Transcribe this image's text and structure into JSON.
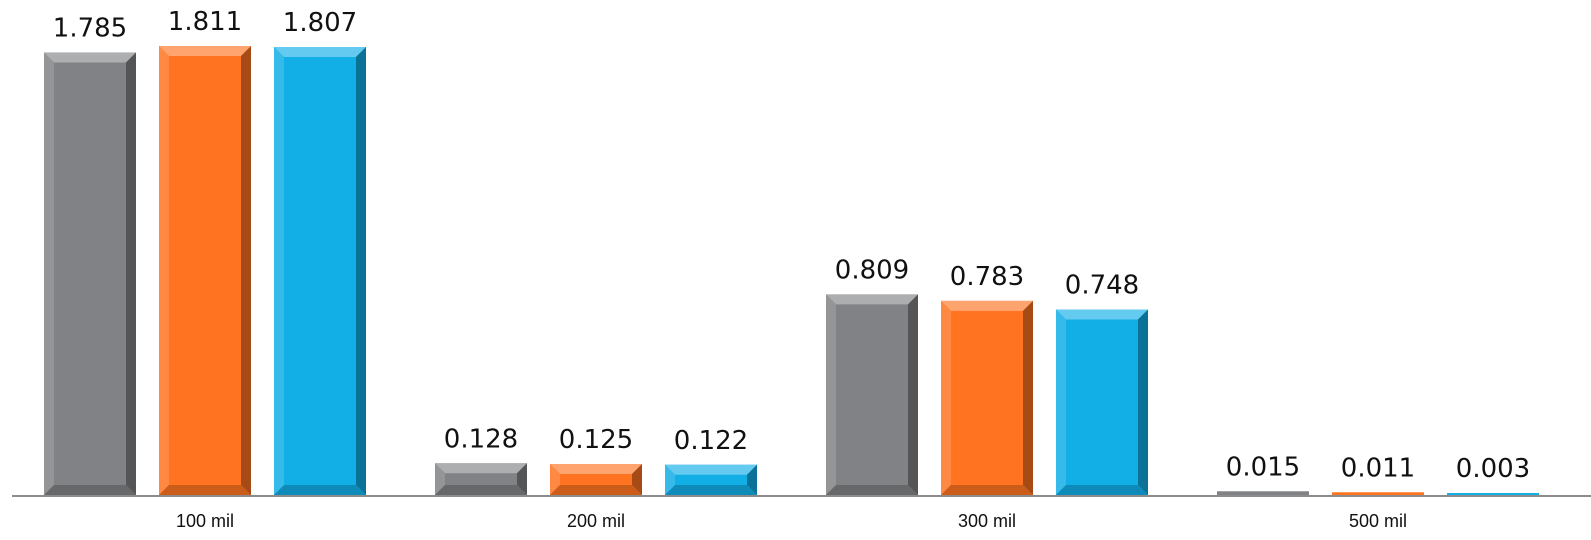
{
  "chart_data": {
    "type": "bar",
    "categories": [
      "100 mil",
      "200 mil",
      "300 mil",
      "500 mil"
    ],
    "series": [
      {
        "values": [
          1.785,
          0.128,
          0.809,
          0.015
        ],
        "labels": [
          "1.785",
          "0.128",
          "0.809",
          "0.015"
        ],
        "color": "#808285"
      },
      {
        "values": [
          1.811,
          0.125,
          0.783,
          0.011
        ],
        "labels": [
          "1.811",
          "0.125",
          "0.783",
          "0.011"
        ],
        "color": "#FF7321"
      },
      {
        "values": [
          1.807,
          0.122,
          0.748,
          0.003
        ],
        "labels": [
          "1.807",
          "0.122",
          "0.748",
          "0.003"
        ],
        "color": "#12AEE6"
      }
    ],
    "title": "",
    "xlabel": "",
    "ylabel": "",
    "ylim": [
      0,
      1.85
    ],
    "grid": false,
    "legend": "none",
    "bar_style": "beveled"
  }
}
